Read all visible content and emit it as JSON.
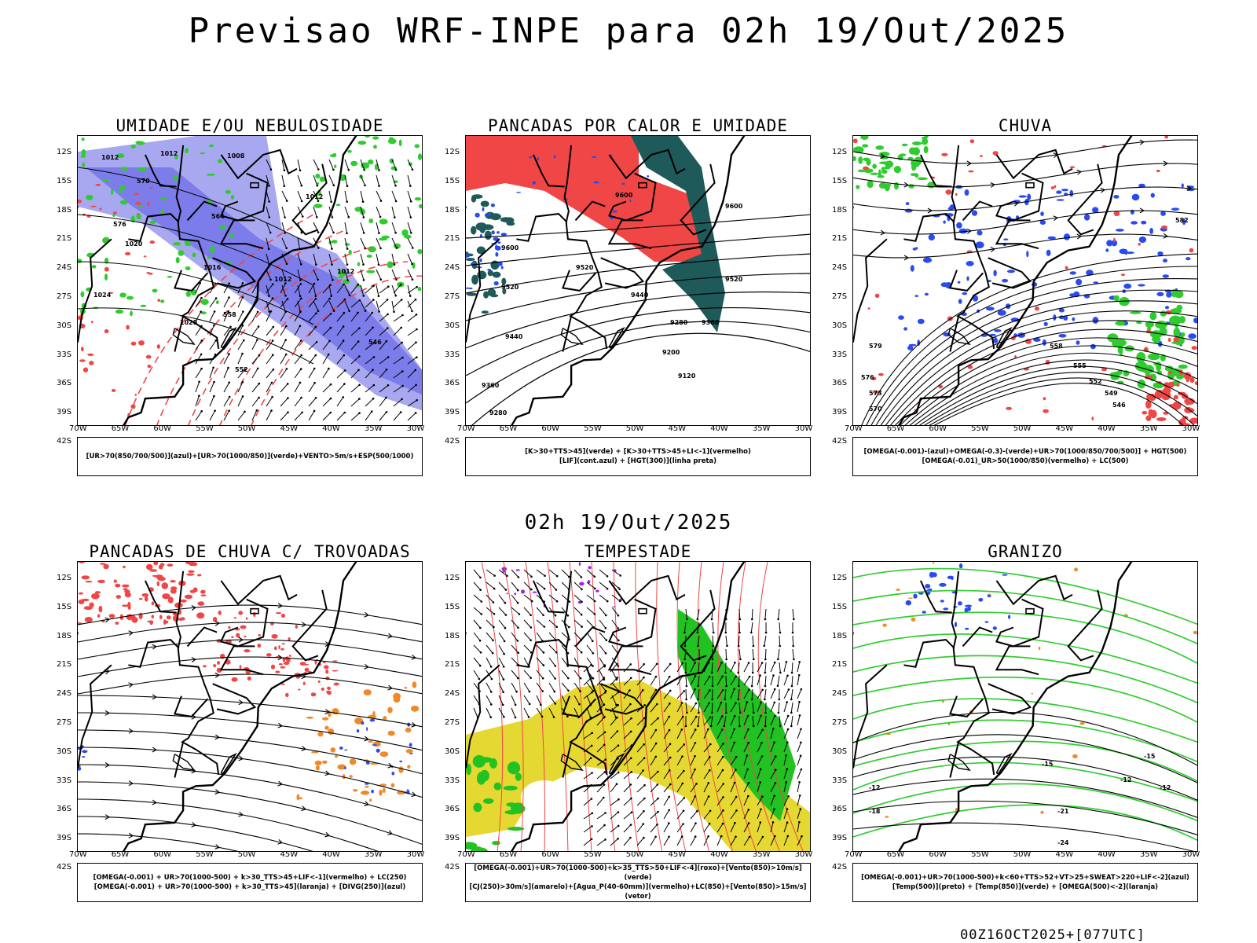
{
  "header": {
    "title": "Previsao WRF-INPE  para 02h 19/Out/2025",
    "mid_title": "02h 19/Out/2025",
    "footer": "00Z16OCT2025+[077UTC]"
  },
  "axes": {
    "lat_labels": [
      "12S",
      "15S",
      "18S",
      "21S",
      "24S",
      "27S",
      "30S",
      "33S",
      "36S",
      "39S",
      "42S"
    ],
    "lon_labels": [
      "70W",
      "65W",
      "60W",
      "55W",
      "50W",
      "45W",
      "40W",
      "35W",
      "30W"
    ]
  },
  "colors": {
    "red": "#f04646",
    "green": "#2ecc2e",
    "blue": "#2a4bf0",
    "lightblue": "#a8a8f0",
    "purple": "#aa1ee0",
    "orange": "#f08a28",
    "yellow": "#e6d832",
    "teal": "#1e5a5a"
  },
  "panels": [
    {
      "title": "UMIDADE E/OU NEBULOSIDADE",
      "legend": [
        "[UR>70(850/700/500)](azul)+[UR>70(1000/850)](verde)+VENTO>5m/s+ESP(500/1000)"
      ],
      "labels": [
        "1012",
        "1012",
        "1008",
        "1012",
        "1020",
        "1016",
        "1012",
        "1012",
        "1024",
        "1028",
        "576",
        "570",
        "564",
        "558",
        "552",
        "546"
      ]
    },
    {
      "title": "PANCADAS POR CALOR E UMIDADE",
      "legend": [
        "[K>30+TTS>45](verde)  +  [K>30+TTS>45+LI<-1](vermelho)",
        "[LIF](cont.azul)  +  [HGT(300)](linha preta)"
      ],
      "labels": [
        "9600",
        "9600",
        "9600",
        "9520",
        "9520",
        "9520",
        "9440",
        "9440",
        "9360",
        "9360",
        "9280",
        "9280",
        "9200",
        "9120"
      ]
    },
    {
      "title": "CHUVA",
      "legend": [
        "[OMEGA(-0.001)-(azul)+OMEGA(-0.3)-(verde)+UR>70(1000/850/700/500)]  +  HGT(500)",
        "[OMEGA(-0.01)_UR>50(1000/850)(vermelho)  +  LC(500)"
      ],
      "labels": [
        "582",
        "579",
        "576",
        "573",
        "570",
        "558",
        "555",
        "552",
        "549",
        "546"
      ]
    },
    {
      "title": "PANCADAS DE CHUVA C/ TROVOADAS",
      "legend": [
        "[OMEGA(-0.001)  +  UR>70(1000-500)  +  k>30_TTS>45+LIF<-1](vermelho)  +  LC(250)",
        "[OMEGA(-0.001)  +  UR>70(1000-500)  +  k>30_TTS>45](laranja)  +  [DIVG(250)](azul)"
      ],
      "labels": []
    },
    {
      "title": "TEMPESTADE",
      "legend": [
        "[OMEGA(-0.001)+UR>70(1000-500)+k>35_TTS>50+LIF<-4](roxo)+[Vento(850)>10m/s](verde)",
        "[CJ(250)>30m/s](amarelo)+[Agua_P(40-60mm)](vermelho)+LC(850)+[Vento(850)>15m/s](vetor)"
      ],
      "labels": []
    },
    {
      "title": "GRANIZO",
      "legend": [
        "[OMEGA(-0.001)+UR>70(1000-500)+k<60+TTS>52+VT>25+SWEAT>220+LIF<-2](azul)",
        "[Temp(500)](preto)  +  [Temp(850)](verde)  +  [OMEGA(500)<-2](laranja)"
      ],
      "labels": [
        "-12",
        "-15",
        "-18",
        "-21",
        "-24",
        "-12",
        "-12",
        "-15"
      ]
    }
  ]
}
